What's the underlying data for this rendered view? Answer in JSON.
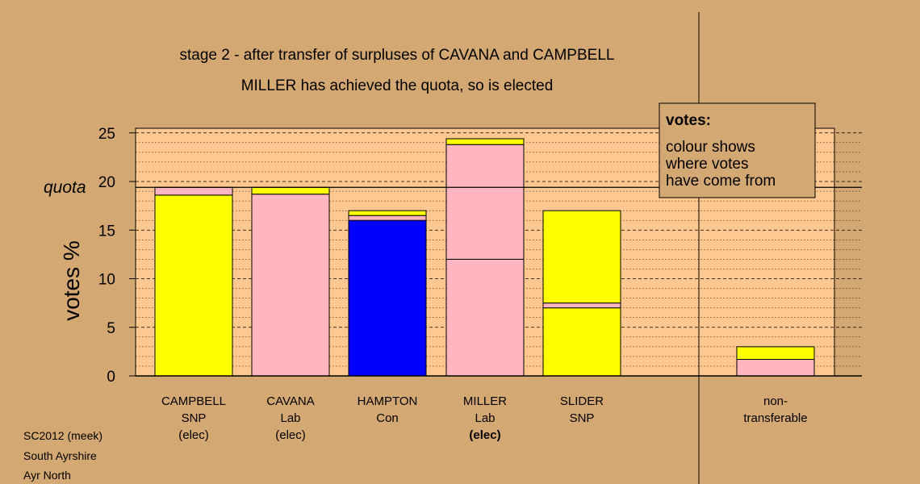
{
  "chart_data": {
    "type": "bar",
    "stacked": true,
    "title": "stage 2 - after transfer of surpluses of CAVANA and CAMPBELL",
    "subtitle": "MILLER has achieved the quota, so is elected",
    "ylabel": "votes %",
    "ylim": [
      0,
      25.5
    ],
    "yticks": [
      0,
      5,
      10,
      15,
      20,
      25
    ],
    "quota": {
      "label": "quota",
      "value": 19.4
    },
    "colors": {
      "SNP": "#ffff00",
      "Lab": "#ffb6c1",
      "Con": "#0000ff",
      "background": "#d4a873",
      "panel": "#ffc890"
    },
    "categories": [
      {
        "lines": [
          "CAMPBELL",
          "SNP",
          "(elec)"
        ],
        "bold_line": -1,
        "segments": [
          {
            "from": "SNP",
            "value": 18.6
          },
          {
            "from": "Lab",
            "value": 0.8
          }
        ]
      },
      {
        "lines": [
          "CAVANA",
          "Lab",
          "(elec)"
        ],
        "bold_line": -1,
        "segments": [
          {
            "from": "Lab",
            "value": 18.7
          },
          {
            "from": "SNP",
            "value": 0.7
          }
        ]
      },
      {
        "lines": [
          "HAMPTON",
          "Con"
        ],
        "bold_line": -1,
        "segments": [
          {
            "from": "Con",
            "value": 16.0
          },
          {
            "from": "Lab",
            "value": 0.5
          },
          {
            "from": "SNP",
            "value": 0.5
          }
        ]
      },
      {
        "lines": [
          "MILLER",
          "Lab",
          "(elec)"
        ],
        "bold_line": 2,
        "segments": [
          {
            "from": "Lab",
            "value": 12.0
          },
          {
            "from": "Lab",
            "value": 11.8
          },
          {
            "from": "SNP",
            "value": 0.6
          }
        ]
      },
      {
        "lines": [
          "SLIDER",
          "SNP"
        ],
        "bold_line": -1,
        "segments": [
          {
            "from": "SNP",
            "value": 7.0
          },
          {
            "from": "Lab",
            "value": 0.5
          },
          {
            "from": "SNP",
            "value": 9.5
          }
        ]
      },
      {
        "lines": [
          "non-",
          "transferable"
        ],
        "bold_line": -1,
        "segments": [
          {
            "from": "Lab",
            "value": 1.7
          },
          {
            "from": "SNP",
            "value": 1.3
          }
        ]
      }
    ],
    "legend": {
      "title": "votes:",
      "lines": [
        "colour shows",
        "where votes",
        "have come from"
      ],
      "placement": "top-right"
    }
  },
  "footer": {
    "lines": [
      "SC2012 (meek)",
      "South Ayrshire",
      "Ayr North"
    ]
  }
}
